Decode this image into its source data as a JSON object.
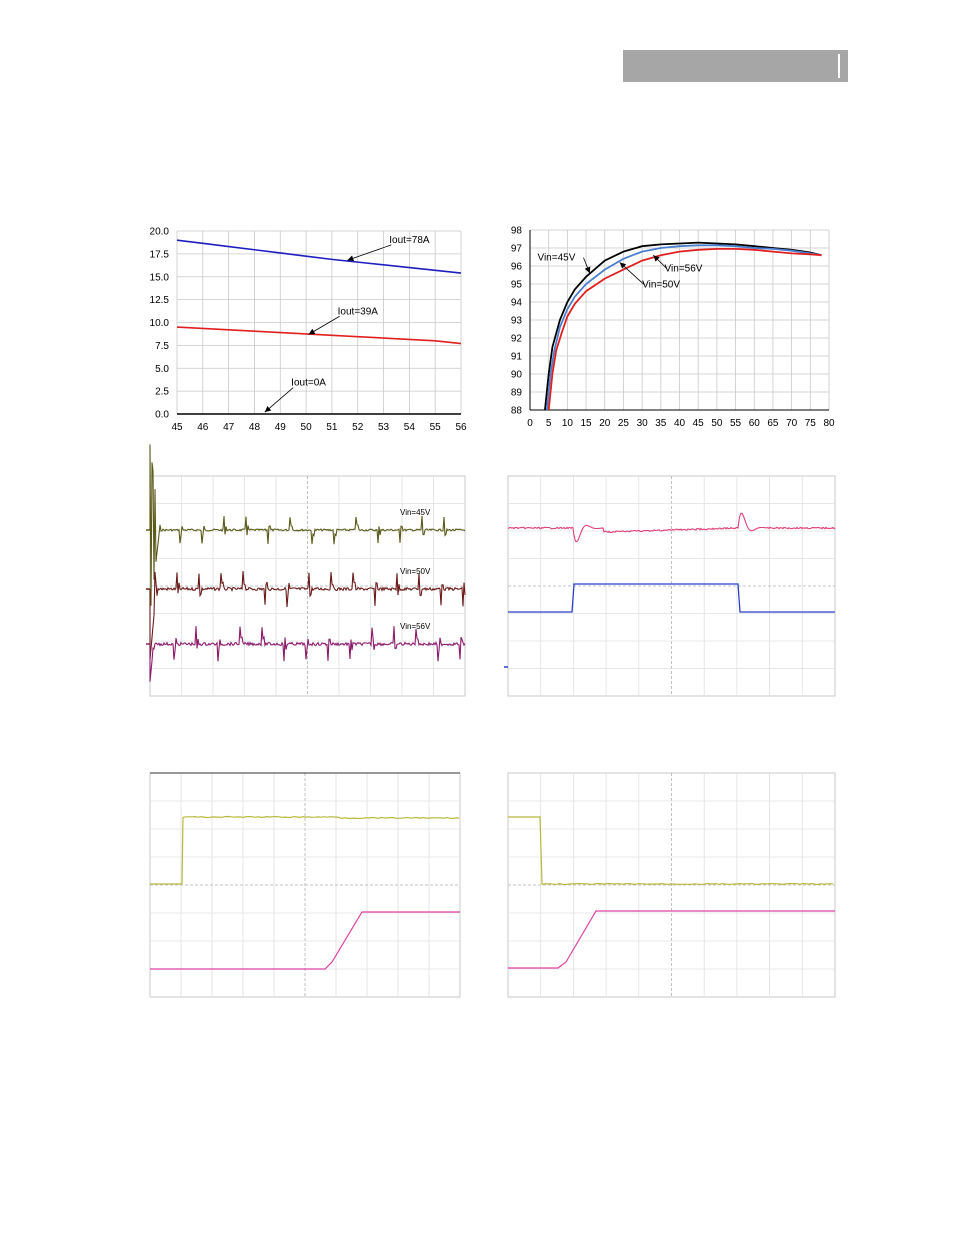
{
  "chart_data": [
    {
      "type": "line",
      "x": [
        45,
        46,
        47,
        48,
        49,
        50,
        51,
        52,
        53,
        54,
        55,
        56
      ],
      "xlim": [
        45,
        56
      ],
      "ylim": [
        0,
        20
      ],
      "xticks": [
        "45",
        "46",
        "47",
        "48",
        "49",
        "50",
        "51",
        "52",
        "53",
        "54",
        "55",
        "56"
      ],
      "yticks": [
        "0.0",
        "2.5",
        "5.0",
        "7.5",
        "10.0",
        "12.5",
        "15.0",
        "17.5",
        "20.0"
      ],
      "grid": true,
      "series": [
        {
          "name": "Iout=78A",
          "color": "#1f1fbf",
          "values": [
            19.0,
            18.65,
            18.3,
            17.95,
            17.6,
            17.25,
            16.9,
            16.6,
            16.3,
            16.0,
            15.7,
            15.4
          ]
        },
        {
          "name": "Iout=39A",
          "color": "#e02020",
          "values": [
            9.5,
            9.35,
            9.2,
            9.05,
            8.9,
            8.75,
            8.6,
            8.45,
            8.3,
            8.15,
            8.0,
            7.7
          ]
        },
        {
          "name": "Iout=0A",
          "color": "#000000",
          "values": [
            0,
            0,
            0,
            0,
            0,
            0,
            0,
            0,
            0,
            0,
            0,
            0
          ]
        }
      ],
      "annotations": [
        {
          "text": "Iout=78A",
          "x": 53.3,
          "y": 18.7,
          "arrow_to": [
            51.6,
            16.8
          ]
        },
        {
          "text": "Iout=39A",
          "x": 51.3,
          "y": 10.9,
          "arrow_to": [
            50.1,
            8.7
          ]
        },
        {
          "text": "Iout=0A",
          "x": 49.5,
          "y": 3.1,
          "arrow_to": [
            48.4,
            0.2
          ]
        }
      ]
    },
    {
      "type": "line",
      "xlim": [
        0,
        80
      ],
      "ylim": [
        88,
        98
      ],
      "xticks": [
        "0",
        "5",
        "10",
        "15",
        "20",
        "25",
        "30",
        "35",
        "40",
        "45",
        "50",
        "55",
        "60",
        "65",
        "70",
        "75",
        "80"
      ],
      "yticks": [
        "88",
        "89",
        "90",
        "91",
        "92",
        "93",
        "94",
        "95",
        "96",
        "97",
        "98"
      ],
      "grid": true,
      "series": [
        {
          "name": "Vin=45V",
          "color": "#000000",
          "x": [
            4,
            5,
            6,
            8,
            10,
            12,
            15,
            20,
            25,
            30,
            35,
            40,
            45,
            50,
            55,
            60,
            65,
            70,
            75,
            78
          ],
          "values": [
            88.0,
            90.0,
            91.5,
            93.0,
            94.0,
            94.7,
            95.4,
            96.3,
            96.8,
            97.1,
            97.2,
            97.25,
            97.3,
            97.25,
            97.2,
            97.1,
            97.0,
            96.9,
            96.75,
            96.6
          ]
        },
        {
          "name": "Vin=50V",
          "color": "#4a7fcf",
          "x": [
            4.5,
            5.5,
            6.5,
            8,
            10,
            12,
            15,
            20,
            25,
            30,
            35,
            40,
            45,
            50,
            55,
            60,
            65,
            70,
            75,
            78
          ],
          "values": [
            88.0,
            90.0,
            91.3,
            92.6,
            93.6,
            94.3,
            95.0,
            95.8,
            96.4,
            96.8,
            97.0,
            97.1,
            97.15,
            97.15,
            97.1,
            97.0,
            96.95,
            96.85,
            96.7,
            96.6
          ]
        },
        {
          "name": "Vin=56V",
          "color": "#e02020",
          "x": [
            5,
            6,
            7,
            8.5,
            10,
            12,
            15,
            20,
            25,
            30,
            35,
            40,
            45,
            50,
            55,
            60,
            65,
            70,
            75,
            78
          ],
          "values": [
            88.0,
            90.0,
            91.3,
            92.3,
            93.2,
            93.9,
            94.6,
            95.3,
            95.8,
            96.3,
            96.6,
            96.8,
            96.9,
            96.95,
            96.95,
            96.9,
            96.8,
            96.7,
            96.65,
            96.6
          ]
        }
      ],
      "annotations": [
        {
          "text": "Vin=45V",
          "x": 2,
          "y": 96.3,
          "arrow_to": [
            16,
            95.6
          ]
        },
        {
          "text": "Vin=56V",
          "x": 36,
          "y": 95.7,
          "arrow_to": [
            33,
            96.6
          ]
        },
        {
          "text": "Vin=50V",
          "x": 30,
          "y": 94.8,
          "arrow_to": [
            24,
            96.2
          ]
        }
      ]
    },
    {
      "type": "line",
      "kind": "oscilloscope",
      "grid": true,
      "traces": [
        {
          "label": "Vin=45V",
          "color": "#5a5a1a"
        },
        {
          "label": "Vin=50V",
          "color": "#6b1a1a"
        },
        {
          "label": "Vin=56V",
          "color": "#8b1a6b"
        }
      ]
    },
    {
      "type": "line",
      "kind": "oscilloscope",
      "grid": true,
      "traces": [
        {
          "color": "#e0407a"
        },
        {
          "color": "#2a3fd0"
        }
      ]
    },
    {
      "type": "line",
      "kind": "oscilloscope",
      "grid": true,
      "traces": [
        {
          "color": "#b8b83a"
        },
        {
          "color": "#e040a0"
        }
      ]
    },
    {
      "type": "line",
      "kind": "oscilloscope",
      "grid": true,
      "traces": [
        {
          "color": "#b8b83a"
        },
        {
          "color": "#e040a0"
        }
      ]
    }
  ]
}
